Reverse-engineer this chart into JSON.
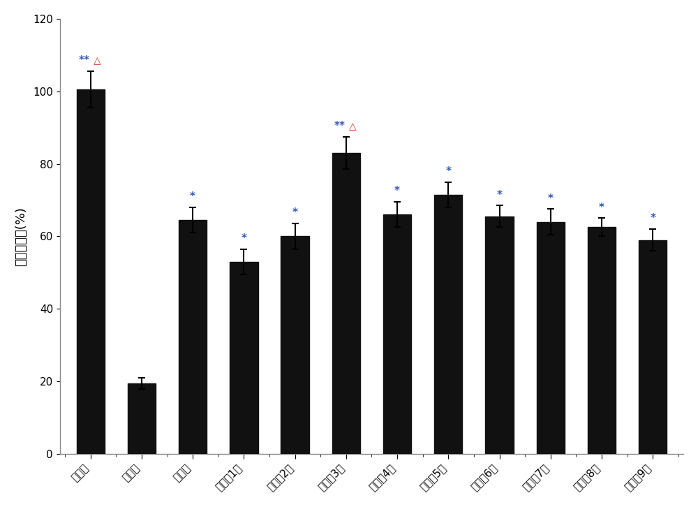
{
  "categories": [
    "正常组",
    "模型组",
    "阳性组",
    "提取物1组",
    "提取物2组",
    "提取物3组",
    "提取物4组",
    "提取物5组",
    "提取物6组",
    "提取物7组",
    "提取物8组",
    "提取物9组"
  ],
  "values": [
    100.5,
    19.5,
    64.5,
    53.0,
    60.0,
    83.0,
    66.0,
    71.5,
    65.5,
    64.0,
    62.5,
    59.0
  ],
  "errors": [
    5.0,
    1.5,
    3.5,
    3.5,
    3.5,
    4.5,
    3.5,
    3.5,
    3.0,
    3.5,
    2.5,
    3.0
  ],
  "bar_color": "#111111",
  "bar_edgecolor": "#111111",
  "ylabel": "死亡保护率(%)",
  "ylim": [
    0,
    120
  ],
  "yticks": [
    0,
    20,
    40,
    60,
    80,
    100,
    120
  ],
  "background_color": "#ffffff",
  "annotations": [
    {
      "idx": 0,
      "text": "**",
      "symbol": "△"
    },
    {
      "idx": 2,
      "text": "*",
      "symbol": null
    },
    {
      "idx": 3,
      "text": "*",
      "symbol": null
    },
    {
      "idx": 4,
      "text": "*",
      "symbol": null
    },
    {
      "idx": 5,
      "text": "**",
      "symbol": "△"
    },
    {
      "idx": 6,
      "text": "*",
      "symbol": null
    },
    {
      "idx": 7,
      "text": "*",
      "symbol": null
    },
    {
      "idx": 8,
      "text": "*",
      "symbol": null
    },
    {
      "idx": 9,
      "text": "*",
      "symbol": null
    },
    {
      "idx": 10,
      "text": "*",
      "symbol": null
    },
    {
      "idx": 11,
      "text": "*",
      "symbol": null
    }
  ],
  "star_color": "#3355bb",
  "tri_color": "#cc3322",
  "bar_width": 0.55,
  "tick_fontsize": 11,
  "ylabel_fontsize": 13,
  "annotation_fontsize": 11,
  "figure_bgcolor": "#ffffff",
  "ax_bgcolor": "#ffffff",
  "border_color": "#888888"
}
